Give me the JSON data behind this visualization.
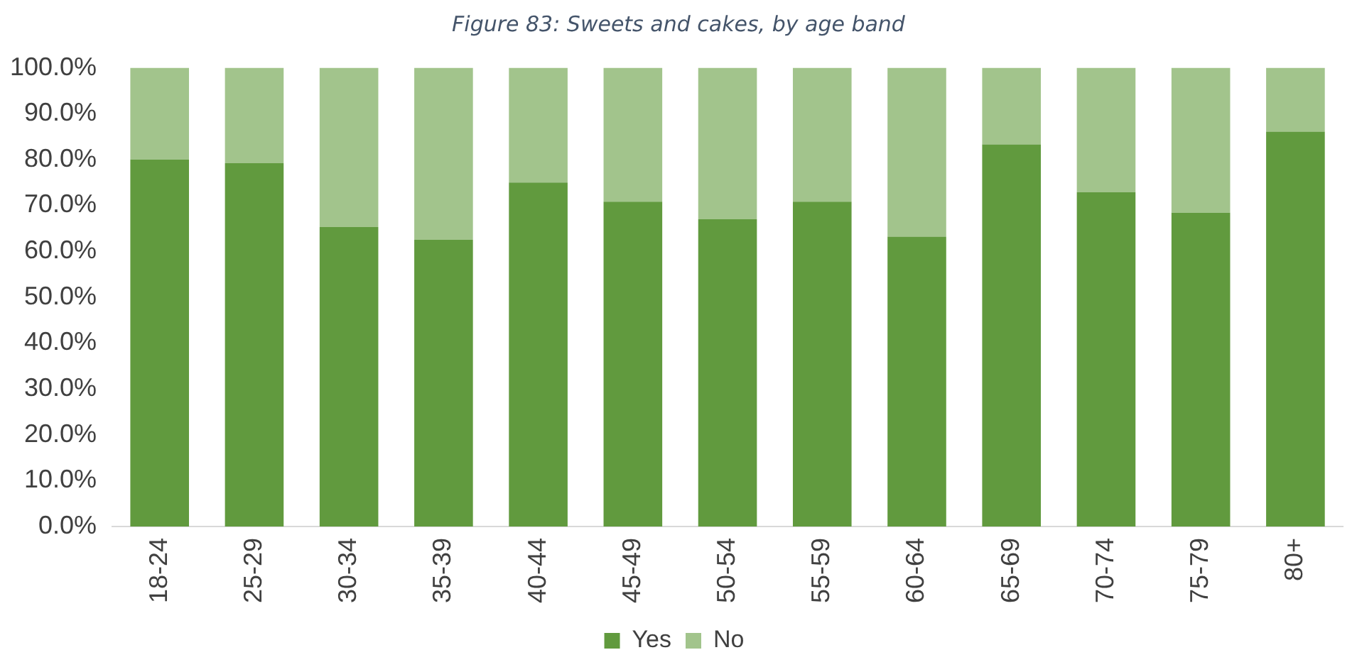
{
  "chart_data": {
    "type": "bar",
    "title": "Figure 83: Sweets and cakes, by age band",
    "stacked": true,
    "legend": "bottom",
    "grid": false,
    "categories": [
      "18-24",
      "25-29",
      "30-34",
      "35-39",
      "40-44",
      "45-49",
      "50-54",
      "55-59",
      "60-64",
      "65-69",
      "70-74",
      "75-79",
      "80+"
    ],
    "series": [
      {
        "name": "Yes",
        "color": "#619a3e",
        "values": [
          80,
          79.2,
          65.3,
          62.5,
          75,
          70.8,
          67,
          70.8,
          63.2,
          83.3,
          72.9,
          68.4,
          86.1
        ]
      },
      {
        "name": "No",
        "color": "#a2c48c",
        "values": [
          20,
          20.8,
          34.7,
          37.5,
          25,
          29.2,
          33,
          29.2,
          36.8,
          16.7,
          27.1,
          31.6,
          13.9
        ]
      }
    ],
    "ylim": [
      0,
      100
    ],
    "yticks": [
      {
        "value": 0,
        "label": "0.0%"
      },
      {
        "value": 10,
        "label": "10.0%"
      },
      {
        "value": 20,
        "label": "20.0%"
      },
      {
        "value": 30,
        "label": "30.0%"
      },
      {
        "value": 40,
        "label": "40.0%"
      },
      {
        "value": 50,
        "label": "50.0%"
      },
      {
        "value": 60,
        "label": "60.0%"
      },
      {
        "value": 70,
        "label": "70.0%"
      },
      {
        "value": 80,
        "label": "80.0%"
      },
      {
        "value": 90,
        "label": "90.0%"
      },
      {
        "value": 100,
        "label": "100.0%"
      }
    ]
  }
}
